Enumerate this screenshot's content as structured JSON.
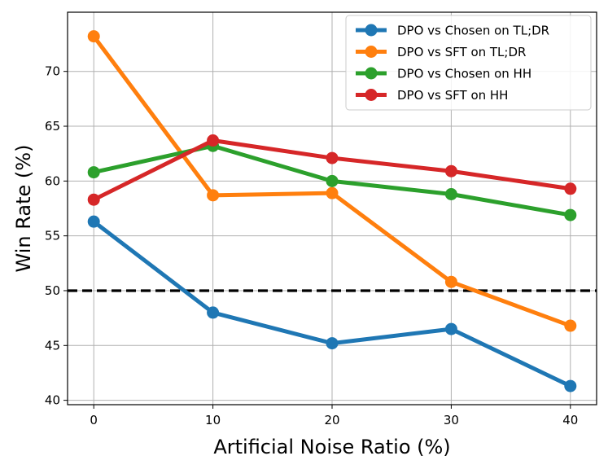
{
  "chart_data": {
    "type": "line",
    "title": "",
    "xlabel": "Artificial Noise Ratio (%)",
    "ylabel": "Win Rate (%)",
    "x": [
      0,
      10,
      20,
      30,
      40
    ],
    "xticks": [
      "0",
      "10",
      "20",
      "30",
      "40"
    ],
    "yticks": [
      "40",
      "45",
      "50",
      "55",
      "60",
      "65",
      "70"
    ],
    "xlim": [
      -2.2,
      42.2
    ],
    "ylim": [
      39.6,
      75.4
    ],
    "grid": true,
    "legend_position": "top-right",
    "reference_line": {
      "y": 50,
      "style": "dashed",
      "color": "#000000"
    },
    "series": [
      {
        "name": "DPO vs Chosen on TL;DR",
        "color": "#1f77b4",
        "values": [
          56.3,
          48.0,
          45.2,
          46.5,
          41.3
        ]
      },
      {
        "name": "DPO vs SFT on TL;DR",
        "color": "#ff7f0e",
        "values": [
          73.2,
          58.7,
          58.9,
          50.8,
          46.8
        ]
      },
      {
        "name": "DPO vs Chosen on HH",
        "color": "#2ca02c",
        "values": [
          60.8,
          63.2,
          60.0,
          58.8,
          56.9
        ]
      },
      {
        "name": "DPO vs SFT on HH",
        "color": "#d62728",
        "values": [
          58.3,
          63.7,
          62.1,
          60.9,
          59.3
        ]
      }
    ]
  }
}
